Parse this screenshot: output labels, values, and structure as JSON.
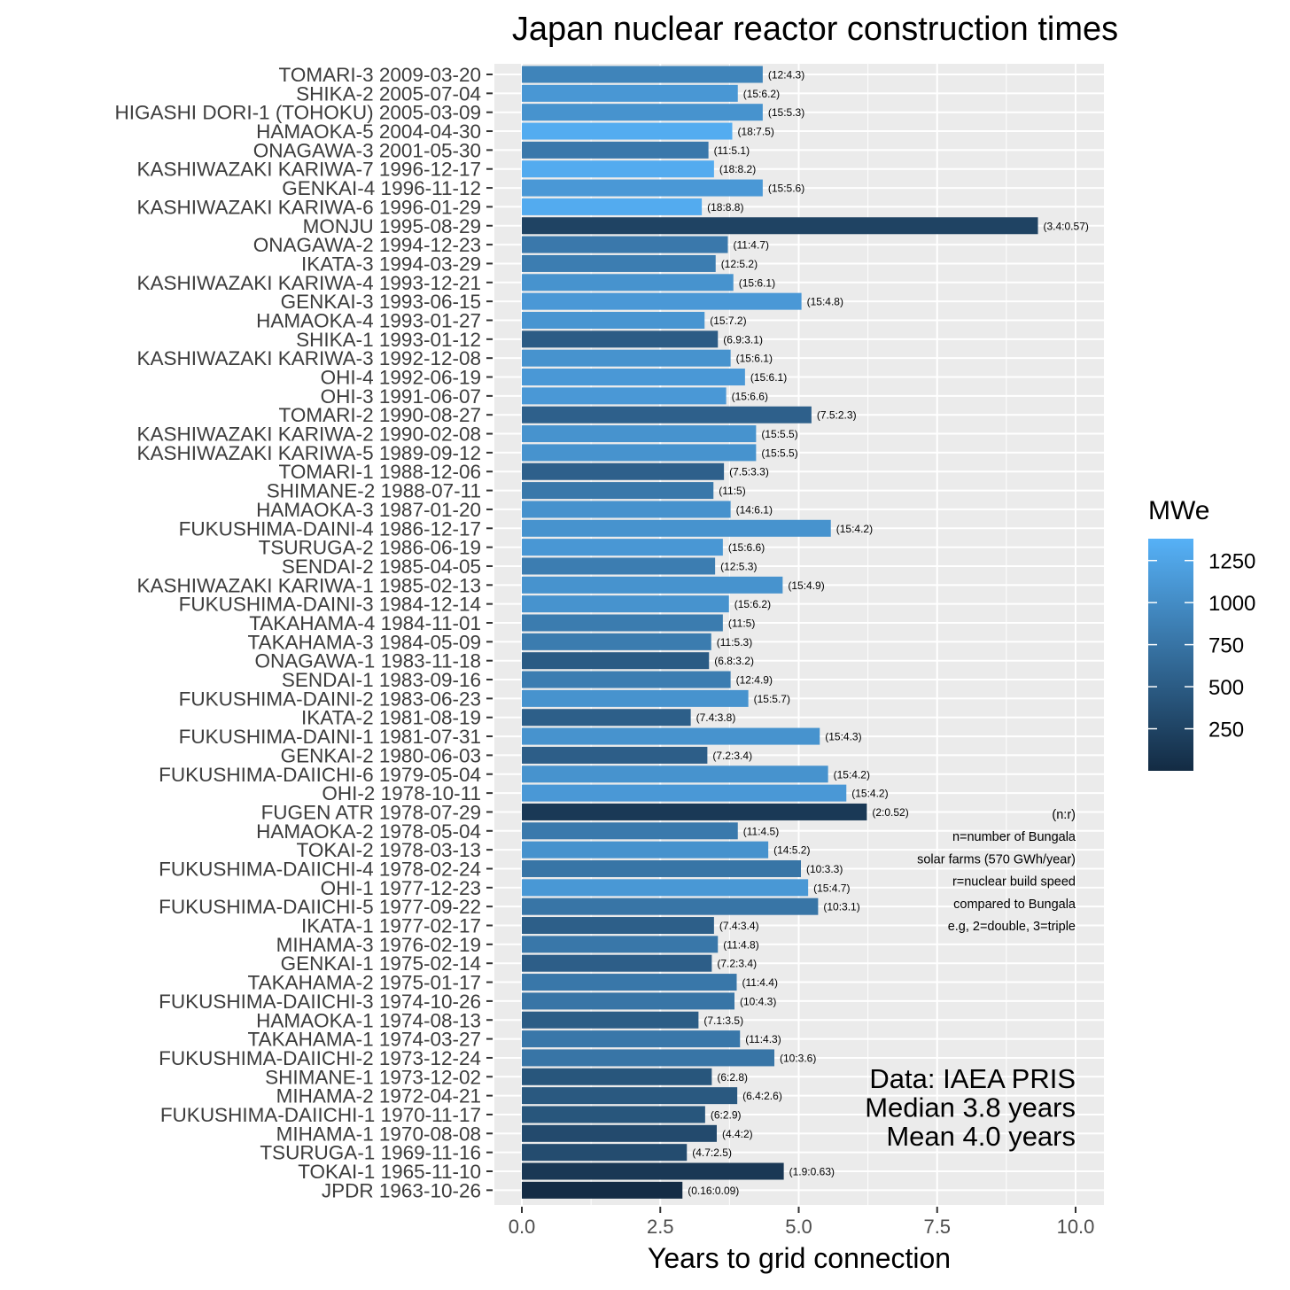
{
  "chart_data": {
    "type": "bar",
    "orientation": "horizontal",
    "title": "Japan nuclear reactor construction times",
    "xlabel": "Years to grid connection",
    "ylabel": "",
    "xlim": [
      0,
      10.2
    ],
    "xticks": [
      "0.0",
      "2.5",
      "5.0",
      "7.5",
      "10.0"
    ],
    "grid": true,
    "legend": {
      "title": "MWe",
      "position": "right",
      "ticks": [
        "1250",
        "1000",
        "750",
        "500",
        "250"
      ],
      "colors": [
        "#132b43",
        "#56b1f7"
      ],
      "range": [
        0,
        1380
      ]
    },
    "note": [
      "(n:r)",
      "n=number of Bungala",
      "solar farms (570 GWh/year)",
      "r=nuclear build speed",
      "compared to Bungala",
      "e.g, 2=double, 3=triple"
    ],
    "stats": [
      "Data: IAEA PRIS",
      "Median 3.8 years",
      "Mean 4.0 years"
    ],
    "bars": [
      {
        "label": "TOMARI-3 2009-03-20",
        "value": 4.35,
        "mwe": 912,
        "annotation": "(12:4.3)"
      },
      {
        "label": "SHIKA-2 2005-07-04",
        "value": 3.9,
        "mwe": 1108,
        "annotation": "(15:6.2)"
      },
      {
        "label": "HIGASHI DORI-1 (TOHOKU) 2005-03-09",
        "value": 4.35,
        "mwe": 1067,
        "annotation": "(15:5.3)"
      },
      {
        "label": "HAMAOKA-5 2004-04-30",
        "value": 3.8,
        "mwe": 1325,
        "annotation": "(18:7.5)"
      },
      {
        "label": "ONAGAWA-3 2001-05-30",
        "value": 3.37,
        "mwe": 796,
        "annotation": "(11:5.1)"
      },
      {
        "label": "KASHIWAZAKI KARIWA-7 1996-12-17",
        "value": 3.47,
        "mwe": 1315,
        "annotation": "(18:8.2)"
      },
      {
        "label": "GENKAI-4 1996-11-12",
        "value": 4.35,
        "mwe": 1127,
        "annotation": "(15:5.6)"
      },
      {
        "label": "KASHIWAZAKI KARIWA-6 1996-01-29",
        "value": 3.25,
        "mwe": 1315,
        "annotation": "(18:8.8)"
      },
      {
        "label": "MONJU 1995-08-29",
        "value": 9.32,
        "mwe": 246,
        "annotation": "(3.4:0.57)"
      },
      {
        "label": "ONAGAWA-2 1994-12-23",
        "value": 3.72,
        "mwe": 796,
        "annotation": "(11:4.7)"
      },
      {
        "label": "IKATA-3 1994-03-29",
        "value": 3.5,
        "mwe": 846,
        "annotation": "(12:5.2)"
      },
      {
        "label": "KASHIWAZAKI KARIWA-4 1993-12-21",
        "value": 3.82,
        "mwe": 1067,
        "annotation": "(15:6.1)"
      },
      {
        "label": "GENKAI-3 1993-06-15",
        "value": 5.05,
        "mwe": 1127,
        "annotation": "(15:4.8)"
      },
      {
        "label": "HAMAOKA-4 1993-01-27",
        "value": 3.3,
        "mwe": 1092,
        "annotation": "(15:7.2)"
      },
      {
        "label": "SHIKA-1 1993-01-12",
        "value": 3.54,
        "mwe": 505,
        "annotation": "(6.9:3.1)"
      },
      {
        "label": "KASHIWAZAKI KARIWA-3 1992-12-08",
        "value": 3.77,
        "mwe": 1067,
        "annotation": "(15:6.1)"
      },
      {
        "label": "OHI-4 1992-06-19",
        "value": 4.03,
        "mwe": 1127,
        "annotation": "(15:6.1)"
      },
      {
        "label": "OHI-3 1991-06-07",
        "value": 3.69,
        "mwe": 1127,
        "annotation": "(15:6.6)"
      },
      {
        "label": "TOMARI-2 1990-08-27",
        "value": 5.23,
        "mwe": 550,
        "annotation": "(7.5:2.3)"
      },
      {
        "label": "KASHIWAZAKI KARIWA-2 1990-02-08",
        "value": 4.23,
        "mwe": 1067,
        "annotation": "(15:5.5)"
      },
      {
        "label": "KASHIWAZAKI KARIWA-5 1989-09-12",
        "value": 4.23,
        "mwe": 1067,
        "annotation": "(15:5.5)"
      },
      {
        "label": "TOMARI-1 1988-12-06",
        "value": 3.65,
        "mwe": 550,
        "annotation": "(7.5:3.3)"
      },
      {
        "label": "SHIMANE-2 1988-07-11",
        "value": 3.46,
        "mwe": 789,
        "annotation": "(11:5)"
      },
      {
        "label": "HAMAOKA-3 1987-01-20",
        "value": 3.77,
        "mwe": 1056,
        "annotation": "(14:6.1)"
      },
      {
        "label": "FUKUSHIMA-DAINI-4 1986-12-17",
        "value": 5.58,
        "mwe": 1067,
        "annotation": "(15:4.2)"
      },
      {
        "label": "TSURUGA-2 1986-06-19",
        "value": 3.63,
        "mwe": 1108,
        "annotation": "(15:6.6)"
      },
      {
        "label": "SENDAI-2 1985-04-05",
        "value": 3.49,
        "mwe": 846,
        "annotation": "(12:5.3)"
      },
      {
        "label": "KASHIWAZAKI KARIWA-1 1985-02-13",
        "value": 4.71,
        "mwe": 1067,
        "annotation": "(15:4.9)"
      },
      {
        "label": "FUKUSHIMA-DAINI-3 1984-12-14",
        "value": 3.74,
        "mwe": 1067,
        "annotation": "(15:6.2)"
      },
      {
        "label": "TAKAHAMA-4 1984-11-01",
        "value": 3.63,
        "mwe": 830,
        "annotation": "(11:5)"
      },
      {
        "label": "TAKAHAMA-3 1984-05-09",
        "value": 3.42,
        "mwe": 830,
        "annotation": "(11:5.3)"
      },
      {
        "label": "ONAGAWA-1 1983-11-18",
        "value": 3.38,
        "mwe": 498,
        "annotation": "(6.8:3.2)"
      },
      {
        "label": "SENDAI-1 1983-09-16",
        "value": 3.77,
        "mwe": 846,
        "annotation": "(12:4.9)"
      },
      {
        "label": "FUKUSHIMA-DAINI-2 1983-06-23",
        "value": 4.09,
        "mwe": 1067,
        "annotation": "(15:5.7)"
      },
      {
        "label": "IKATA-2 1981-08-19",
        "value": 3.05,
        "mwe": 538,
        "annotation": "(7.4:3.8)"
      },
      {
        "label": "FUKUSHIMA-DAINI-1 1981-07-31",
        "value": 5.38,
        "mwe": 1067,
        "annotation": "(15:4.3)"
      },
      {
        "label": "GENKAI-2 1980-06-03",
        "value": 3.35,
        "mwe": 529,
        "annotation": "(7.2:3.4)"
      },
      {
        "label": "FUKUSHIMA-DAIICHI-6 1979-05-04",
        "value": 5.53,
        "mwe": 1067,
        "annotation": "(15:4.2)"
      },
      {
        "label": "OHI-2 1978-10-11",
        "value": 5.86,
        "mwe": 1127,
        "annotation": "(15:4.2)"
      },
      {
        "label": "FUGEN ATR 1978-07-29",
        "value": 6.23,
        "mwe": 148,
        "annotation": "(2:0.52)"
      },
      {
        "label": "HAMAOKA-2 1978-05-04",
        "value": 3.9,
        "mwe": 806,
        "annotation": "(11:4.5)"
      },
      {
        "label": "TOKAI-2 1978-03-13",
        "value": 4.45,
        "mwe": 1060,
        "annotation": "(14:5.2)"
      },
      {
        "label": "FUKUSHIMA-DAIICHI-4 1978-02-24",
        "value": 5.04,
        "mwe": 760,
        "annotation": "(10:3.3)"
      },
      {
        "label": "OHI-1 1977-12-23",
        "value": 5.17,
        "mwe": 1120,
        "annotation": "(15:4.7)"
      },
      {
        "label": "FUKUSHIMA-DAIICHI-5 1977-09-22",
        "value": 5.35,
        "mwe": 760,
        "annotation": "(10:3.1)"
      },
      {
        "label": "IKATA-1 1977-02-17",
        "value": 3.47,
        "mwe": 538,
        "annotation": "(7.4:3.4)"
      },
      {
        "label": "MIHAMA-3 1976-02-19",
        "value": 3.54,
        "mwe": 780,
        "annotation": "(11:4.8)"
      },
      {
        "label": "GENKAI-1 1975-02-14",
        "value": 3.43,
        "mwe": 529,
        "annotation": "(7.2:3.4)"
      },
      {
        "label": "TAKAHAMA-2 1975-01-17",
        "value": 3.88,
        "mwe": 780,
        "annotation": "(11:4.4)"
      },
      {
        "label": "FUKUSHIMA-DAIICHI-3 1974-10-26",
        "value": 3.84,
        "mwe": 760,
        "annotation": "(10:4.3)"
      },
      {
        "label": "HAMAOKA-1 1974-08-13",
        "value": 3.19,
        "mwe": 515,
        "annotation": "(7.1:3.5)"
      },
      {
        "label": "TAKAHAMA-1 1974-03-27",
        "value": 3.94,
        "mwe": 780,
        "annotation": "(11:4.3)"
      },
      {
        "label": "FUKUSHIMA-DAIICHI-2 1973-12-24",
        "value": 4.56,
        "mwe": 760,
        "annotation": "(10:3.6)"
      },
      {
        "label": "SHIMANE-1 1973-12-02",
        "value": 3.43,
        "mwe": 439,
        "annotation": "(6:2.8)"
      },
      {
        "label": "MIHAMA-2 1972-04-21",
        "value": 3.89,
        "mwe": 470,
        "annotation": "(6.4:2.6)"
      },
      {
        "label": "FUKUSHIMA-DAIICHI-1 1970-11-17",
        "value": 3.31,
        "mwe": 439,
        "annotation": "(6:2.9)"
      },
      {
        "label": "MIHAMA-1 1970-08-08",
        "value": 3.52,
        "mwe": 320,
        "annotation": "(4.4:2)"
      },
      {
        "label": "TSURUGA-1 1969-11-16",
        "value": 2.98,
        "mwe": 340,
        "annotation": "(4.7:2.5)"
      },
      {
        "label": "TOKAI-1 1965-11-10",
        "value": 4.73,
        "mwe": 137,
        "annotation": "(1.9:0.63)"
      },
      {
        "label": "JPDR 1963-10-26",
        "value": 2.9,
        "mwe": 12,
        "annotation": "(0.16:0.09)"
      }
    ]
  }
}
